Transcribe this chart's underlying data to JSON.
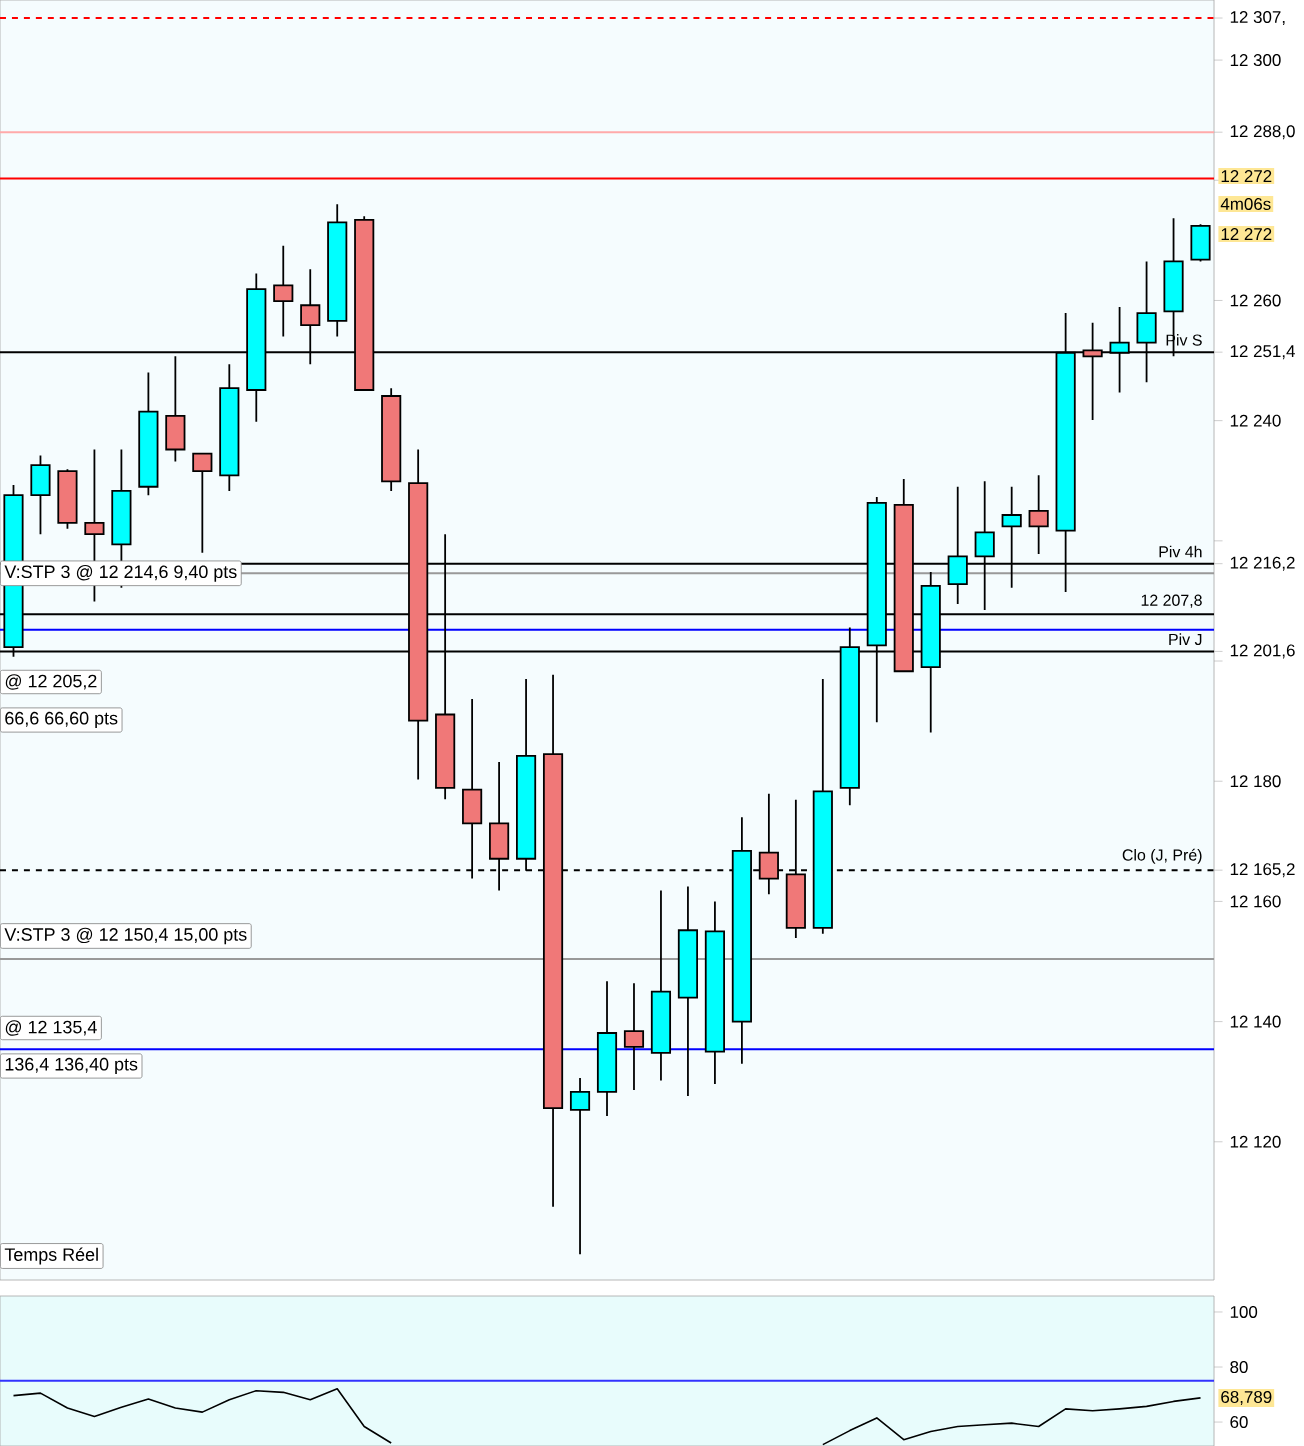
{
  "chart_data": [
    {
      "type": "candlestick",
      "categories": [
        null,
        null,
        null,
        null,
        null,
        null,
        null,
        null,
        null,
        null,
        null,
        null,
        null,
        null,
        null,
        null,
        null,
        null,
        null,
        null,
        null,
        null,
        null,
        null,
        null,
        null,
        null,
        null,
        null,
        null,
        null,
        null,
        null,
        null,
        null,
        null,
        null,
        null,
        null,
        null,
        null,
        null,
        null,
        null,
        null
      ],
      "ohlc": [
        [
          12202.3,
          12229.3,
          12200.7,
          12227.6
        ],
        [
          12227.6,
          12234.2,
          12221.1,
          12232.6
        ],
        [
          12231.6,
          12231.9,
          12222.0,
          12223.0
        ],
        [
          12223.0,
          12235.2,
          12209.9,
          12221.1
        ],
        [
          12219.4,
          12235.2,
          12212.2,
          12228.3
        ],
        [
          12229.0,
          12248.0,
          12227.6,
          12241.5
        ],
        [
          12240.8,
          12250.7,
          12233.2,
          12235.2
        ],
        [
          12234.5,
          12234.5,
          12218.0,
          12231.6
        ],
        [
          12230.9,
          12249.4,
          12228.3,
          12245.4
        ],
        [
          12245.1,
          12264.5,
          12239.8,
          12261.9
        ],
        [
          12262.5,
          12269.1,
          12254.0,
          12259.9
        ],
        [
          12259.2,
          12265.2,
          12249.4,
          12255.9
        ],
        [
          12256.6,
          12276.0,
          12254.0,
          12273.0
        ],
        [
          12273.4,
          12274.0,
          12245.1,
          12245.1
        ],
        [
          12244.1,
          12245.4,
          12228.3,
          12229.9
        ],
        [
          12229.6,
          12235.2,
          12180.3,
          12190.1
        ],
        [
          12191.1,
          12221.1,
          12177.0,
          12178.9
        ],
        [
          12178.6,
          12193.7,
          12163.8,
          12173.0
        ],
        [
          12173.0,
          12183.2,
          12161.8,
          12167.1
        ],
        [
          12167.1,
          12197.0,
          12165.1,
          12184.2
        ],
        [
          12184.5,
          12197.7,
          12109.2,
          12125.6
        ],
        [
          12125.3,
          12130.6,
          12101.3,
          12128.3
        ],
        [
          12128.3,
          12146.7,
          12124.3,
          12138.1
        ],
        [
          12138.4,
          12146.4,
          12128.6,
          12135.8
        ],
        [
          12134.8,
          12161.8,
          12130.2,
          12145.0
        ],
        [
          12144.0,
          12162.5,
          12127.6,
          12155.2
        ],
        [
          12135.0,
          12160.0,
          12129.6,
          12155.0
        ],
        [
          12140.0,
          12174.0,
          12133.0,
          12168.4
        ],
        [
          12168.1,
          12177.9,
          12161.2,
          12163.8
        ],
        [
          12164.5,
          12176.9,
          12153.9,
          12155.6
        ],
        [
          12155.6,
          12197.0,
          12154.6,
          12178.3
        ],
        [
          12178.9,
          12205.6,
          12176.0,
          12202.3
        ],
        [
          12202.6,
          12227.3,
          12189.8,
          12226.3
        ],
        [
          12226.0,
          12230.3,
          12198.3,
          12198.3
        ],
        [
          12199.0,
          12214.8,
          12188.1,
          12212.5
        ],
        [
          12212.8,
          12229.0,
          12209.5,
          12217.4
        ],
        [
          12217.4,
          12229.9,
          12208.5,
          12221.4
        ],
        [
          12222.4,
          12229.0,
          12212.2,
          12224.3
        ],
        [
          12225.0,
          12230.9,
          12217.8,
          12222.4
        ],
        [
          12221.7,
          12257.9,
          12211.5,
          12251.3
        ],
        [
          12251.7,
          12256.3,
          12240.1,
          12250.7
        ],
        [
          12251.3,
          12258.9,
          12244.7,
          12253.0
        ],
        [
          12253.0,
          12266.5,
          12246.4,
          12257.9
        ],
        [
          12258.2,
          12273.7,
          12250.7,
          12266.5
        ],
        [
          12266.8,
          12272.7,
          12266.5,
          12272.4
        ]
      ],
      "ylim": [
        12097,
        12310
      ],
      "yticks": [
        {
          "value": 12120,
          "label": "12 120"
        },
        {
          "value": 12140,
          "label": "12 140"
        },
        {
          "value": 12160,
          "label": "12 160"
        },
        {
          "value": 12180,
          "label": "12 180"
        },
        {
          "value": 12200,
          "label": null
        },
        {
          "value": 12220,
          "label": null
        },
        {
          "value": 12240,
          "label": "12 240"
        },
        {
          "value": 12260,
          "label": "12 260"
        },
        {
          "value": 12280,
          "label": null
        },
        {
          "value": 12300,
          "label": "12 300"
        },
        {
          "value": 12307,
          "label": "12 307,"
        },
        {
          "value": 12288,
          "label": "12 288,0"
        },
        {
          "value": 12251.4,
          "label": "12 251,4"
        },
        {
          "value": 12216.2,
          "label": "12 216,2"
        },
        {
          "value": 12201.6,
          "label": "12 201,6"
        },
        {
          "value": 12165.2,
          "label": "12 165,2"
        }
      ],
      "ref_lines": [
        {
          "axis": "y",
          "value": 12307,
          "color": "#ff0000",
          "line_style": "dashed"
        },
        {
          "axis": "y",
          "value": 12288,
          "color": "#ffaaaa"
        },
        {
          "axis": "y",
          "value": 12280.3,
          "color": "#ff0000"
        },
        {
          "axis": "y",
          "value": 12251.4,
          "color": "#000000",
          "label": "Piv S"
        },
        {
          "axis": "y",
          "value": 12216.2,
          "color": "#000000",
          "label": "Piv 4h"
        },
        {
          "axis": "y",
          "value": 12214.6,
          "color": "#999999"
        },
        {
          "axis": "y",
          "value": 12207.8,
          "color": "#000000",
          "label": "12 207,8"
        },
        {
          "axis": "y",
          "value": 12205.2,
          "color": "#0000ff"
        },
        {
          "axis": "y",
          "value": 12201.6,
          "color": "#000000",
          "label": "Piv J"
        },
        {
          "axis": "y",
          "value": 12165.2,
          "color": "#000000",
          "line_style": "dashed",
          "label": "Clo (J, Pré)"
        },
        {
          "axis": "y",
          "value": 12150.4,
          "color": "#999999"
        },
        {
          "axis": "y",
          "value": 12135.4,
          "color": "#0000ff"
        }
      ],
      "annotations": [
        {
          "text": "V:STP 3 @ 12 214,6   9,40 pts",
          "y": 12214.6
        },
        "@ 12 205,2",
        "66,6   66,60 pts",
        "V:STP 3 @ 12 150,4   15,00 pts",
        "@ 12 135,4",
        "136,4   136,40 pts",
        "Temps Réel",
        "12 272",
        "4m06s",
        "12 272"
      ]
    },
    {
      "type": "line",
      "categories": [
        null,
        null,
        null,
        null,
        null,
        null,
        null,
        null,
        null,
        null,
        null,
        null,
        null,
        null,
        null,
        null,
        null,
        null,
        null,
        null,
        null,
        null,
        null,
        null,
        null,
        null,
        null,
        null,
        null,
        null,
        null,
        null,
        null,
        null,
        null,
        null,
        null,
        null,
        null,
        null,
        null,
        null,
        null,
        null,
        null
      ],
      "series": [
        {
          "color": "#000000",
          "values": [
            69.6,
            70.5,
            65.1,
            62.0,
            65.4,
            68.4,
            65.1,
            63.6,
            68.1,
            71.4,
            70.8,
            68.1,
            72.1,
            58.4,
            52.4,
            null,
            null,
            null,
            null,
            null,
            null,
            null,
            null,
            null,
            null,
            null,
            null,
            null,
            null,
            null,
            51.8,
            56.9,
            61.5,
            53.6,
            56.6,
            58.4,
            59.0,
            59.6,
            58.4,
            64.8,
            64.1,
            64.8,
            65.7,
            67.5,
            68.8
          ]
        }
      ],
      "ylim": [
        51.3,
        105.8
      ],
      "yticks": [
        60,
        80,
        100
      ],
      "annotations": [
        "68,789"
      ],
      "ref_lines": [
        {
          "axis": "y",
          "value": 75,
          "color": "#3333ff"
        }
      ]
    }
  ]
}
